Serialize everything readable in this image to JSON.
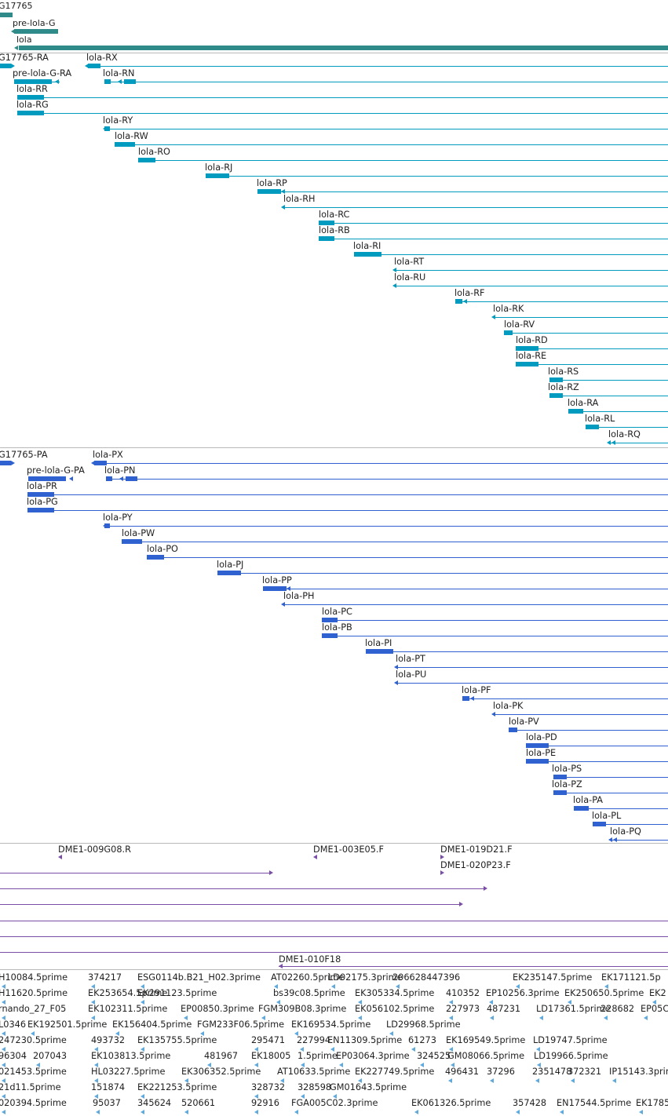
{
  "colors": {
    "gene": "#2f8a8a",
    "rna": "#009bbf",
    "protein": "#2f61d1",
    "probe": "#7b4ea6",
    "est": "#5fa9dd",
    "separator": "#b9b9b9"
  },
  "gene_track": {
    "features": [
      {
        "label": "G17765"
      },
      {
        "label": "pre-lola-G"
      },
      {
        "label": "lola"
      }
    ]
  },
  "rna_track": {
    "features": [
      {
        "label": "G17765-RA"
      },
      {
        "label": "lola-RX"
      },
      {
        "label": "pre-lola-G-RA"
      },
      {
        "label": "lola-RN"
      },
      {
        "label": "lola-RR"
      },
      {
        "label": "lola-RG"
      },
      {
        "label": "lola-RY"
      },
      {
        "label": "lola-RW"
      },
      {
        "label": "lola-RO"
      },
      {
        "label": "lola-RJ"
      },
      {
        "label": "lola-RP"
      },
      {
        "label": "lola-RH"
      },
      {
        "label": "lola-RC"
      },
      {
        "label": "lola-RB"
      },
      {
        "label": "lola-RI"
      },
      {
        "label": "lola-RT"
      },
      {
        "label": "lola-RU"
      },
      {
        "label": "lola-RF"
      },
      {
        "label": "lola-RK"
      },
      {
        "label": "lola-RV"
      },
      {
        "label": "lola-RD"
      },
      {
        "label": "lola-RE"
      },
      {
        "label": "lola-RS"
      },
      {
        "label": "lola-RZ"
      },
      {
        "label": "lola-RA"
      },
      {
        "label": "lola-RL"
      },
      {
        "label": "lola-RQ"
      }
    ]
  },
  "protein_track": {
    "features": [
      {
        "label": "G17765-PA"
      },
      {
        "label": "lola-PX"
      },
      {
        "label": "pre-lola-G-PA"
      },
      {
        "label": "lola-PN"
      },
      {
        "label": "lola-PR"
      },
      {
        "label": "lola-PG"
      },
      {
        "label": "lola-PY"
      },
      {
        "label": "lola-PW"
      },
      {
        "label": "lola-PO"
      },
      {
        "label": "lola-PJ"
      },
      {
        "label": "lola-PP"
      },
      {
        "label": "lola-PH"
      },
      {
        "label": "lola-PC"
      },
      {
        "label": "lola-PB"
      },
      {
        "label": "lola-PI"
      },
      {
        "label": "lola-PT"
      },
      {
        "label": "lola-PU"
      },
      {
        "label": "lola-PF"
      },
      {
        "label": "lola-PK"
      },
      {
        "label": "lola-PV"
      },
      {
        "label": "lola-PD"
      },
      {
        "label": "lola-PE"
      },
      {
        "label": "lola-PS"
      },
      {
        "label": "lola-PZ"
      },
      {
        "label": "lola-PA"
      },
      {
        "label": "lola-PL"
      },
      {
        "label": "lola-PQ"
      }
    ]
  },
  "probe_track": {
    "features": [
      {
        "label": "DME1-009G08.R"
      },
      {
        "label": "DME1-003E05.F"
      },
      {
        "label": "DME1-019D21.F"
      },
      {
        "label": "DME1-020P23.F"
      },
      {
        "label": "DME1-010F18"
      }
    ]
  },
  "est_track": {
    "rows": [
      [
        "H10084.5prime",
        "374217",
        "ESG0114b.B21_H02.3prime",
        "AT02260.5prime",
        "LD02175.3prime",
        "206628447396",
        "EK235147.5prime",
        "EK171121.5p"
      ],
      [
        "H11620.5prime",
        "EK253654.5prime",
        "EK291123.5prime",
        "bs39c08.5prime",
        "EK305334.5prime",
        "410352",
        "EP10256.3prime",
        "EK250650.5prime",
        "EK2"
      ],
      [
        "rnando_27_F05",
        "EK102311.5prime",
        "EP00850.3prime",
        "FGM309B08.3prime",
        "EK056102.5prime",
        "227973",
        "487231",
        "LD17361.5prime",
        "228682",
        "EP05C"
      ],
      [
        "L0346",
        "EK192501.5prime",
        "EK156404.5prime",
        "FGM233F06.5prime",
        "EK169534.5prime",
        "LD29968.5prime"
      ],
      [
        "247230.5prime",
        "493732",
        "EK135755.5prime",
        "295471",
        "227994",
        "EN11309.5prime",
        "61273",
        "EK169549.5prime",
        "LD19747.5prime"
      ],
      [
        "96304",
        "207043",
        "EK103813.5prime",
        "481967",
        "EK18005",
        "1.5prime",
        "EP03064.3prime",
        "324525",
        "GM08066.5prime",
        "LD19966.5prime"
      ],
      [
        "021453.5prime",
        "HL03227.5prime",
        "EK306352.5prime",
        "AT10633.5prime",
        "EK227749.5prime",
        "496431",
        "37296",
        "2351478",
        "372321",
        "IP15143.3prime"
      ],
      [
        "21d11.5prime",
        "151874",
        "EK221253.5prime",
        "328732",
        "328598",
        "GM01643.5prime"
      ],
      [
        "020394.5prime",
        "95037",
        "345624",
        "520661",
        "92916",
        "FGA005C02.3prime",
        "EK061326.5prime",
        "357428",
        "EN17544.5prime",
        "EK1785"
      ]
    ]
  }
}
